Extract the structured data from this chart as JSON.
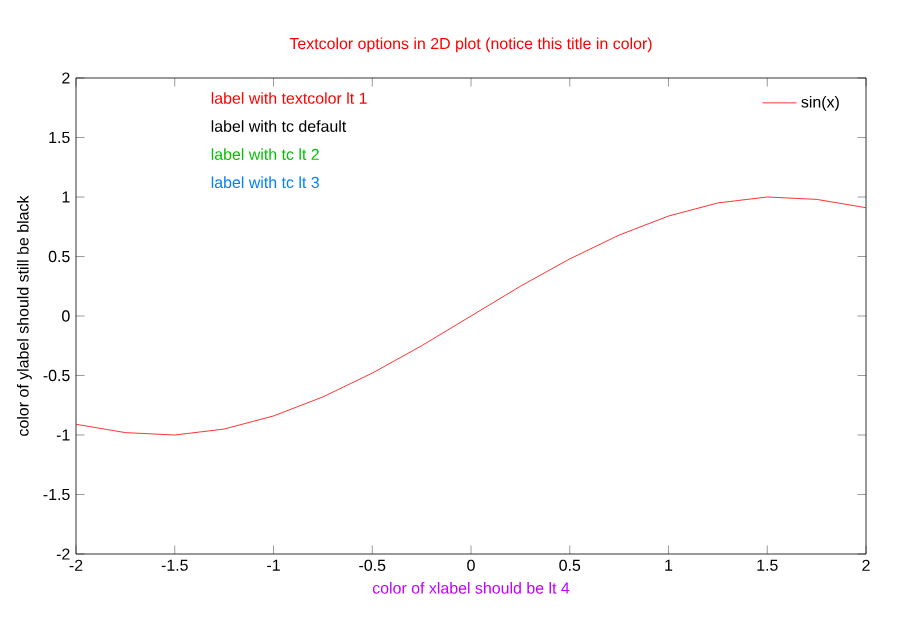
{
  "chart_data": {
    "type": "line",
    "title": "Textcolor options in 2D plot (notice this title in color)",
    "xlabel": "color of xlabel should be lt 4",
    "ylabel": "color of ylabel should still be black",
    "annotations": [
      "label with textcolor lt 1",
      "label with tc default",
      "label with tc lt 2",
      "label with tc lt 3"
    ],
    "x": [
      -2,
      -1.75,
      -1.5,
      -1.25,
      -1,
      -0.75,
      -0.5,
      -0.25,
      0,
      0.25,
      0.5,
      0.75,
      1,
      1.25,
      1.5,
      1.75,
      2
    ],
    "series": [
      {
        "name": "sin(x)",
        "color": "#ff0000",
        "values": [
          -0.91,
          -0.98,
          -1.0,
          -0.95,
          -0.84,
          -0.68,
          -0.48,
          -0.25,
          0,
          0.25,
          0.48,
          0.68,
          0.84,
          0.95,
          1.0,
          0.98,
          0.91
        ]
      }
    ],
    "xlim": [
      -2,
      2
    ],
    "ylim": [
      -2,
      2
    ],
    "xticks": [
      -2,
      -1.5,
      -1,
      -0.5,
      0,
      0.5,
      1,
      1.5,
      2
    ],
    "yticks": [
      -2,
      -1.5,
      -1,
      -0.5,
      0,
      0.5,
      1,
      1.5,
      2
    ],
    "grid": false,
    "legend": "top right",
    "marker": "none",
    "line_style": "solid"
  }
}
